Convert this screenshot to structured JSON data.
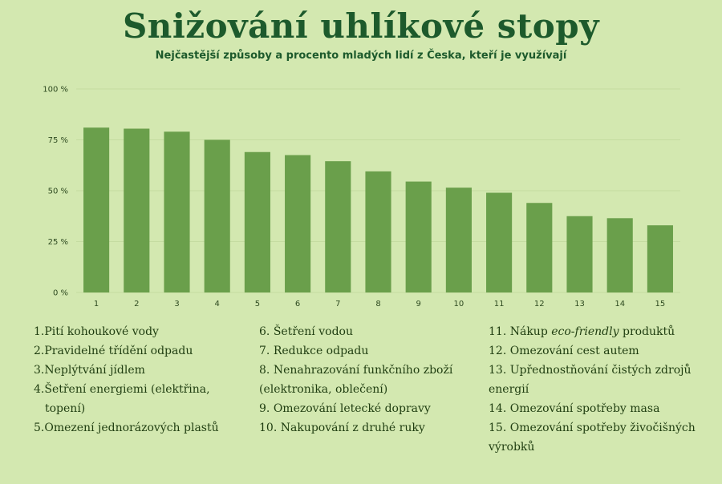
{
  "title": "Snižování uhlíkové stopy",
  "subtitle": "Nejčastější způsoby a procento mladých lidí z Česka, kteří je využívají",
  "colors": {
    "background": "#d3e8b0",
    "bar": "#6a9f4b",
    "title": "#1d5a2c"
  },
  "chart_data": {
    "type": "bar",
    "title": "Snižování uhlíkové stopy",
    "subtitle": "Nejčastější způsoby a procento mladých lidí z Česka, kteří je využívají",
    "categories": [
      "1",
      "2",
      "3",
      "4",
      "5",
      "6",
      "7",
      "8",
      "9",
      "10",
      "11",
      "12",
      "13",
      "14",
      "15"
    ],
    "values": [
      81,
      80.5,
      79,
      75,
      69,
      67.5,
      64.5,
      59.5,
      54.5,
      51.5,
      49,
      44,
      37.5,
      36.5,
      33
    ],
    "y_ticks": [
      "0 %",
      "25 %",
      "50 %",
      "75 %",
      "100 %"
    ],
    "ylim": [
      0,
      100
    ],
    "grid": true
  },
  "legend": [
    {
      "num": "1.",
      "pre": "Pití kohoukové vody",
      "em": "",
      "post": ""
    },
    {
      "num": "2.",
      "pre": "Pravidelné třídění odpadu",
      "em": "",
      "post": ""
    },
    {
      "num": "3.",
      "pre": "Neplýtvání jídlem",
      "em": "",
      "post": ""
    },
    {
      "num": "4.",
      "pre": "Šetření energiemi (elektřina, topení)",
      "em": "",
      "post": ""
    },
    {
      "num": "5.",
      "pre": "Omezení jednorázových plastů",
      "em": "",
      "post": ""
    },
    {
      "num": "6.",
      "pre": "Šetření vodou",
      "em": "",
      "post": ""
    },
    {
      "num": "7.",
      "pre": "Redukce odpadu",
      "em": "",
      "post": ""
    },
    {
      "num": "8.",
      "pre": "Nenahrazování funkčního zboží (elektronika, oblečení)",
      "em": "",
      "post": ""
    },
    {
      "num": "9.",
      "pre": "Omezování letecké dopravy",
      "em": "",
      "post": ""
    },
    {
      "num": "10.",
      "pre": "Nakupování z druhé ruky",
      "em": "",
      "post": ""
    },
    {
      "num": "11.",
      "pre": "Nákup ",
      "em": "eco-friendly",
      "post": " produktů"
    },
    {
      "num": "12.",
      "pre": "Omezování cest autem",
      "em": "",
      "post": ""
    },
    {
      "num": "13.",
      "pre": "Upřednostňování čistých zdrojů energií",
      "em": "",
      "post": ""
    },
    {
      "num": "14.",
      "pre": "Omezování spotřeby masa",
      "em": "",
      "post": ""
    },
    {
      "num": "15.",
      "pre": "Omezování spotřeby živočišných výrobků",
      "em": "",
      "post": ""
    }
  ]
}
